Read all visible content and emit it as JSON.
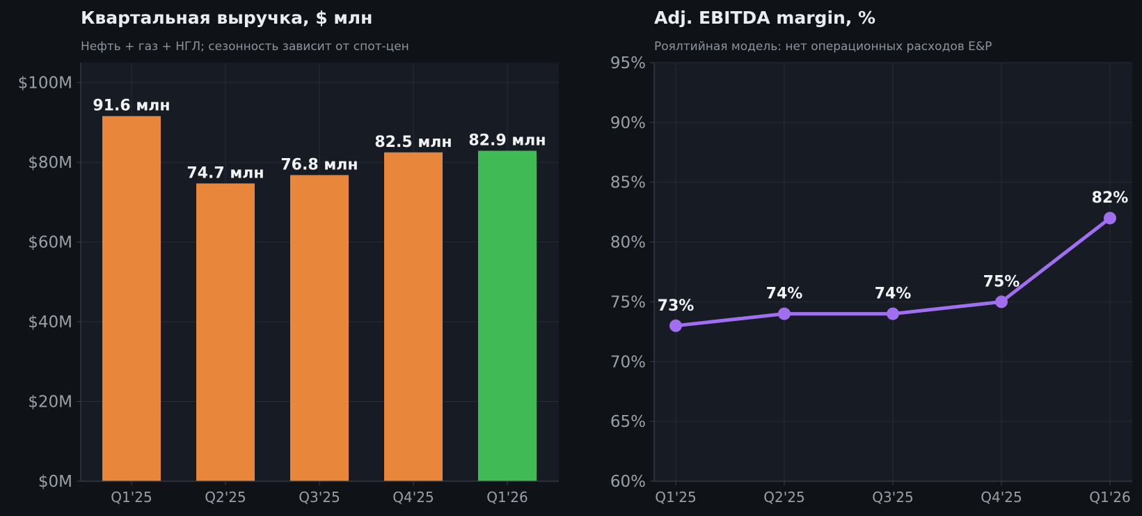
{
  "colors": {
    "page_bg": "#0f1318",
    "plot_bg": "#171b23",
    "grid": "#262b35",
    "axis": "#3a404c",
    "text_title": "#e9edf2",
    "text_subtitle": "#8d949e",
    "text_tick": "#9aa0a8",
    "label": "#f1f3f5"
  },
  "chart_data": [
    {
      "type": "bar",
      "title": "Квартальная выручка, $ млн",
      "subtitle": "Нефть + газ + НГЛ; сезонность зависит от спот-цен",
      "categories": [
        "Q1'25",
        "Q2'25",
        "Q3'25",
        "Q4'25",
        "Q1'26"
      ],
      "values": [
        91.6,
        74.7,
        76.8,
        82.5,
        82.9
      ],
      "data_labels": [
        "91.6 млн",
        "74.7 млн",
        "76.8 млн",
        "82.5 млн",
        "82.9 млн"
      ],
      "bar_colors": [
        "#e8873c",
        "#e8873c",
        "#e8873c",
        "#e8873c",
        "#3fba54"
      ],
      "ylim": [
        0,
        105
      ],
      "yticks": [
        0,
        20,
        40,
        60,
        80,
        100
      ],
      "ytick_labels": [
        "$0M",
        "$20M",
        "$40M",
        "$60M",
        "$80M",
        "$100M"
      ],
      "grid": true
    },
    {
      "type": "line",
      "title": "Adj. EBITDA margin, %",
      "subtitle": "Роялтийная модель: нет операционных расходов E&P",
      "categories": [
        "Q1'25",
        "Q2'25",
        "Q3'25",
        "Q4'25",
        "Q1'26"
      ],
      "values": [
        73,
        74,
        74,
        75,
        82
      ],
      "data_labels": [
        "73%",
        "74%",
        "74%",
        "75%",
        "82%"
      ],
      "line_color": "#a06ff0",
      "ylim": [
        60,
        95
      ],
      "yticks": [
        60,
        65,
        70,
        75,
        80,
        85,
        90,
        95
      ],
      "ytick_labels": [
        "60%",
        "65%",
        "70%",
        "75%",
        "80%",
        "85%",
        "90%",
        "95%"
      ],
      "grid": true
    }
  ]
}
